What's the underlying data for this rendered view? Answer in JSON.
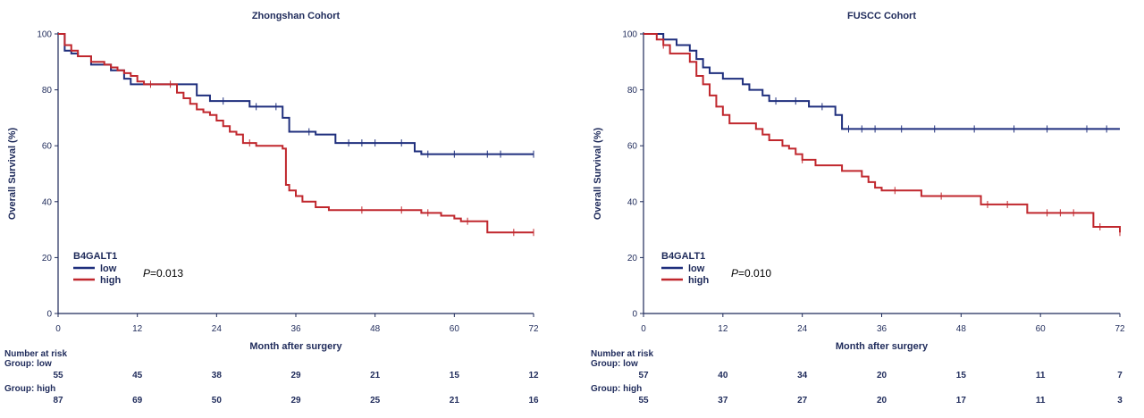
{
  "chart_data": [
    {
      "type": "line",
      "subtype": "kaplan-meier",
      "title": "Zhongshan Cohort",
      "xlabel": "Month after surgery",
      "ylabel": "Overall Survival (%)",
      "xlim": [
        0,
        72
      ],
      "ylim": [
        0,
        100
      ],
      "xticks": [
        0,
        12,
        24,
        36,
        48,
        60,
        72
      ],
      "yticks": [
        0,
        20,
        40,
        60,
        80,
        100
      ],
      "legend_title": "B4GALT1",
      "legend_position": "bottom-left",
      "p_label": "P",
      "p_value": "=0.013",
      "series": [
        {
          "name": "low",
          "color": "#1f2f7d",
          "x": [
            0,
            0.5,
            1,
            2,
            3,
            5,
            8,
            10,
            11,
            14,
            20,
            21,
            23,
            29,
            34,
            35,
            39,
            42,
            54,
            55,
            60,
            72
          ],
          "y": [
            100,
            100,
            94,
            93,
            92,
            89,
            87,
            84,
            82,
            82,
            82,
            78,
            76,
            74,
            70,
            65,
            64,
            61,
            58,
            57,
            57,
            57
          ],
          "censor_x": [
            25,
            30,
            33,
            38,
            44,
            46,
            48,
            52,
            56,
            60,
            65,
            67,
            72
          ]
        },
        {
          "name": "high",
          "color": "#c0272d",
          "x": [
            0,
            0.5,
            1,
            2,
            3,
            5,
            7,
            8,
            9,
            10,
            11,
            12,
            13,
            18,
            19,
            20,
            21,
            22,
            23,
            24,
            25,
            26,
            27,
            28,
            30,
            34,
            34.5,
            35,
            36,
            37,
            39,
            41,
            55,
            58,
            60,
            61,
            63,
            65,
            72
          ],
          "y": [
            100,
            100,
            96,
            94,
            92,
            90,
            89,
            88,
            87,
            86,
            85,
            83,
            82,
            79,
            77,
            75,
            73,
            72,
            71,
            69,
            67,
            65,
            64,
            61,
            60,
            59,
            46,
            44,
            42,
            40,
            38,
            37,
            36,
            35,
            34,
            33,
            33,
            29,
            29
          ],
          "censor_x": [
            14,
            17,
            29,
            46,
            52,
            56,
            62,
            69,
            72
          ]
        }
      ],
      "risk_table": {
        "header": "Number at risk",
        "rows": [
          {
            "label": "Group: low",
            "values": [
              "55",
              "45",
              "38",
              "29",
              "21",
              "15",
              "12"
            ]
          },
          {
            "label": "Group: high",
            "values": [
              "87",
              "69",
              "50",
              "29",
              "25",
              "21",
              "16"
            ]
          }
        ]
      }
    },
    {
      "type": "line",
      "subtype": "kaplan-meier",
      "title": "FUSCC Cohort",
      "xlabel": "Month after surgery",
      "ylabel": "Overall Survival (%)",
      "xlim": [
        0,
        72
      ],
      "ylim": [
        0,
        100
      ],
      "xticks": [
        0,
        12,
        24,
        36,
        48,
        60,
        72
      ],
      "yticks": [
        0,
        20,
        40,
        60,
        80,
        100
      ],
      "legend_title": "B4GALT1",
      "legend_position": "bottom-left",
      "p_label": "P",
      "p_value": "=0.010",
      "series": [
        {
          "name": "low",
          "color": "#1f2f7d",
          "x": [
            0,
            3,
            5,
            7,
            8,
            9,
            10,
            12,
            15,
            16,
            18,
            19,
            21,
            25,
            29,
            30,
            72
          ],
          "y": [
            100,
            98,
            96,
            94,
            91,
            88,
            86,
            84,
            82,
            80,
            78,
            76,
            76,
            74,
            71,
            66,
            66
          ],
          "censor_x": [
            20,
            23,
            27,
            31,
            33,
            35,
            39,
            44,
            50,
            56,
            61,
            67,
            70
          ]
        },
        {
          "name": "high",
          "color": "#c0272d",
          "x": [
            0,
            2,
            3,
            4,
            7,
            8,
            9,
            10,
            11,
            12,
            13,
            17,
            18,
            19,
            21,
            22,
            23,
            24,
            26,
            30,
            33,
            34,
            35,
            36,
            42,
            51,
            58,
            68,
            72
          ],
          "y": [
            100,
            98,
            96,
            93,
            90,
            85,
            82,
            78,
            74,
            71,
            68,
            66,
            64,
            62,
            60,
            59,
            57,
            55,
            53,
            51,
            49,
            47,
            45,
            44,
            42,
            39,
            36,
            31,
            29
          ],
          "censor_x": [
            3,
            24,
            38,
            45,
            52,
            55,
            61,
            63,
            65,
            69,
            72
          ]
        }
      ],
      "risk_table": {
        "header": "Number at risk",
        "rows": [
          {
            "label": "Group: low",
            "values": [
              "57",
              "40",
              "34",
              "20",
              "15",
              "11",
              "7"
            ]
          },
          {
            "label": "Group: high",
            "values": [
              "55",
              "37",
              "27",
              "20",
              "17",
              "11",
              "3"
            ]
          }
        ]
      }
    }
  ]
}
